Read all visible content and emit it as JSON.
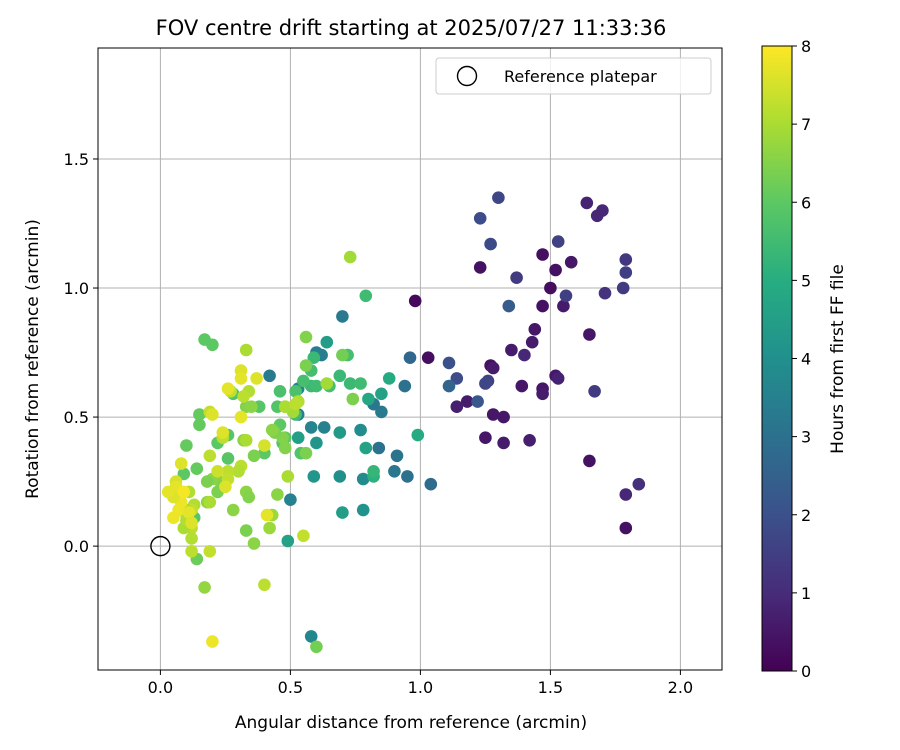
{
  "chart_data": {
    "type": "scatter",
    "title": "FOV centre drift starting at 2025/07/27 11:33:36",
    "xlabel": "Angular distance from reference (arcmin)",
    "ylabel": "Rotation from reference (arcmin)",
    "xlim": [
      -0.24,
      2.16
    ],
    "ylim": [
      -0.48,
      1.93
    ],
    "xticks": [
      0.0,
      0.5,
      1.0,
      1.5,
      2.0
    ],
    "xtick_labels": [
      "0.0",
      "0.5",
      "1.0",
      "1.5",
      "2.0"
    ],
    "yticks": [
      0.0,
      0.5,
      1.0,
      1.5
    ],
    "ytick_labels": [
      "0.0",
      "0.5",
      "1.0",
      "1.5"
    ],
    "grid": true,
    "legend": {
      "placement": "top-right",
      "entries": [
        "Reference platepar"
      ]
    },
    "reference_point": {
      "label": "Reference platepar",
      "x": 0.0,
      "y": 0.0
    },
    "colorbar": {
      "label": "Hours from first FF file",
      "range": [
        0,
        8
      ],
      "ticks": [
        0,
        1,
        2,
        3,
        4,
        5,
        6,
        7,
        8
      ],
      "tick_labels": [
        "0",
        "1",
        "2",
        "3",
        "4",
        "5",
        "6",
        "7",
        "8"
      ],
      "colormap": "viridis"
    },
    "points": [
      [
        0.98,
        0.95,
        0.2
      ],
      [
        1.03,
        0.73,
        0.3
      ],
      [
        1.23,
        1.08,
        0.4
      ],
      [
        1.27,
        0.7,
        0.4
      ],
      [
        1.25,
        0.42,
        0.5
      ],
      [
        1.28,
        0.51,
        0.5
      ],
      [
        1.32,
        0.5,
        0.5
      ],
      [
        1.32,
        0.4,
        0.6
      ],
      [
        1.18,
        0.56,
        0.6
      ],
      [
        1.14,
        0.54,
        0.7
      ],
      [
        1.28,
        0.69,
        0.6
      ],
      [
        1.65,
        0.33,
        0.4
      ],
      [
        1.65,
        0.82,
        0.5
      ],
      [
        1.64,
        1.33,
        0.8
      ],
      [
        1.68,
        1.28,
        0.9
      ],
      [
        1.7,
        1.3,
        0.9
      ],
      [
        1.58,
        1.1,
        0.5
      ],
      [
        1.55,
        0.93,
        0.6
      ],
      [
        1.52,
        1.07,
        0.4
      ],
      [
        1.5,
        1.0,
        0.3
      ],
      [
        1.47,
        1.13,
        0.3
      ],
      [
        1.47,
        0.93,
        0.4
      ],
      [
        1.47,
        0.61,
        0.5
      ],
      [
        1.47,
        0.59,
        0.6
      ],
      [
        1.44,
        0.84,
        0.5
      ],
      [
        1.43,
        0.79,
        0.6
      ],
      [
        1.42,
        0.41,
        0.7
      ],
      [
        1.4,
        0.74,
        0.9
      ],
      [
        1.39,
        0.62,
        0.5
      ],
      [
        1.35,
        0.76,
        0.6
      ],
      [
        1.52,
        0.66,
        0.5
      ],
      [
        1.53,
        0.65,
        0.8
      ],
      [
        1.79,
        0.2,
        0.9
      ],
      [
        1.79,
        0.07,
        0.4
      ],
      [
        1.84,
        0.24,
        1.1
      ],
      [
        1.79,
        1.11,
        1.3
      ],
      [
        1.79,
        1.06,
        1.5
      ],
      [
        1.78,
        1.0,
        1.4
      ],
      [
        1.71,
        0.98,
        1.2
      ],
      [
        1.67,
        0.6,
        1.4
      ],
      [
        1.56,
        0.97,
        1.5
      ],
      [
        1.53,
        1.18,
        1.6
      ],
      [
        1.37,
        1.04,
        1.4
      ],
      [
        1.3,
        1.35,
        1.7
      ],
      [
        1.27,
        1.17,
        1.8
      ],
      [
        1.23,
        1.27,
        1.9
      ],
      [
        1.26,
        0.64,
        1.6
      ],
      [
        1.25,
        0.63,
        1.7
      ],
      [
        1.14,
        0.65,
        1.9
      ],
      [
        1.11,
        0.71,
        2.0
      ],
      [
        1.34,
        0.93,
        2.3
      ],
      [
        1.22,
        0.56,
        2.2
      ],
      [
        1.11,
        0.62,
        2.6
      ],
      [
        1.04,
        0.24,
        2.8
      ],
      [
        0.96,
        0.73,
        2.7
      ],
      [
        0.94,
        0.62,
        3.0
      ],
      [
        0.95,
        0.27,
        3.0
      ],
      [
        0.91,
        0.35,
        3.1
      ],
      [
        0.9,
        0.29,
        3.2
      ],
      [
        0.85,
        0.52,
        3.3
      ],
      [
        0.84,
        0.38,
        3.0
      ],
      [
        0.82,
        0.55,
        3.2
      ],
      [
        0.7,
        0.89,
        3.3
      ],
      [
        0.62,
        0.74,
        3.4
      ],
      [
        0.6,
        0.75,
        3.4
      ],
      [
        0.63,
        0.46,
        3.5
      ],
      [
        0.58,
        0.46,
        3.6
      ],
      [
        0.53,
        0.51,
        3.4
      ],
      [
        0.53,
        0.61,
        3.5
      ],
      [
        0.5,
        0.18,
        3.5
      ],
      [
        0.42,
        0.66,
        3.3
      ],
      [
        0.58,
        -0.35,
        3.7
      ],
      [
        0.78,
        0.26,
        3.8
      ],
      [
        0.77,
        0.45,
        3.9
      ],
      [
        0.78,
        0.14,
        4.1
      ],
      [
        0.69,
        0.27,
        4.0
      ],
      [
        0.69,
        0.44,
        4.3
      ],
      [
        0.7,
        0.13,
        4.4
      ],
      [
        0.59,
        0.27,
        4.2
      ],
      [
        0.6,
        0.4,
        4.2
      ],
      [
        0.64,
        0.79,
        4.4
      ],
      [
        0.53,
        0.42,
        4.5
      ],
      [
        0.49,
        0.02,
        4.6
      ],
      [
        0.85,
        0.59,
        4.6
      ],
      [
        0.8,
        0.57,
        4.8
      ],
      [
        0.79,
        0.38,
        4.6
      ],
      [
        0.88,
        0.65,
        4.9
      ],
      [
        0.99,
        0.43,
        4.9
      ],
      [
        0.82,
        0.27,
        5.1
      ],
      [
        0.82,
        0.29,
        5.3
      ],
      [
        0.73,
        0.63,
        5.4
      ],
      [
        0.79,
        0.97,
        5.5
      ],
      [
        0.72,
        0.74,
        5.6
      ],
      [
        0.77,
        0.63,
        5.5
      ],
      [
        0.65,
        0.62,
        5.6
      ],
      [
        0.69,
        0.66,
        5.4
      ],
      [
        0.58,
        0.62,
        5.4
      ],
      [
        0.6,
        0.62,
        5.5
      ],
      [
        0.58,
        0.68,
        5.6
      ],
      [
        0.59,
        0.73,
        5.4
      ],
      [
        0.52,
        0.51,
        5.5
      ],
      [
        0.52,
        0.6,
        5.7
      ],
      [
        0.55,
        0.64,
        5.6
      ],
      [
        0.54,
        0.36,
        5.8
      ],
      [
        0.46,
        0.6,
        5.7
      ],
      [
        0.45,
        0.54,
        5.8
      ],
      [
        0.44,
        0.45,
        5.8
      ],
      [
        0.47,
        0.4,
        5.9
      ],
      [
        0.48,
        0.42,
        6.0
      ],
      [
        0.46,
        0.47,
        6.0
      ],
      [
        0.4,
        0.36,
        6.0
      ],
      [
        0.38,
        0.54,
        5.9
      ],
      [
        0.28,
        0.59,
        5.8
      ],
      [
        0.26,
        0.43,
        5.9
      ],
      [
        0.26,
        0.34,
        5.9
      ],
      [
        0.22,
        0.4,
        6.0
      ],
      [
        0.17,
        0.8,
        6.0
      ],
      [
        0.2,
        0.78,
        6.0
      ],
      [
        0.15,
        0.51,
        6.1
      ],
      [
        0.15,
        0.47,
        6.1
      ],
      [
        0.14,
        0.3,
        6.1
      ],
      [
        0.13,
        0.11,
        5.9
      ],
      [
        0.14,
        -0.05,
        6.2
      ],
      [
        0.1,
        0.39,
        6.1
      ],
      [
        0.09,
        0.28,
        6.0
      ],
      [
        0.6,
        -0.39,
        6.3
      ],
      [
        0.7,
        0.74,
        6.3
      ],
      [
        0.74,
        0.57,
        6.4
      ],
      [
        0.56,
        0.81,
        6.5
      ],
      [
        0.56,
        0.7,
        6.4
      ],
      [
        0.56,
        0.36,
        6.4
      ],
      [
        0.47,
        0.42,
        6.5
      ],
      [
        0.48,
        0.54,
        6.6
      ],
      [
        0.48,
        0.38,
        6.5
      ],
      [
        0.45,
        0.2,
        6.6
      ],
      [
        0.44,
        0.44,
        6.4
      ],
      [
        0.33,
        0.21,
        6.6
      ],
      [
        0.33,
        0.06,
        6.4
      ],
      [
        0.34,
        0.19,
        6.5
      ],
      [
        0.36,
        0.01,
        6.6
      ],
      [
        0.36,
        0.35,
        6.4
      ],
      [
        0.33,
        0.54,
        6.5
      ],
      [
        0.32,
        0.41,
        6.6
      ],
      [
        0.35,
        0.54,
        6.6
      ],
      [
        0.3,
        0.29,
        6.5
      ],
      [
        0.28,
        0.14,
        6.6
      ],
      [
        0.23,
        0.25,
        6.5
      ],
      [
        0.22,
        0.21,
        6.4
      ],
      [
        0.2,
        0.26,
        6.6
      ],
      [
        0.18,
        0.25,
        6.4
      ],
      [
        0.18,
        0.17,
        6.6
      ],
      [
        0.17,
        -0.16,
        6.7
      ],
      [
        0.42,
        0.07,
        6.8
      ],
      [
        0.43,
        0.12,
        6.8
      ],
      [
        0.43,
        0.45,
        6.6
      ],
      [
        0.73,
        1.12,
        6.9
      ],
      [
        0.64,
        0.63,
        6.9
      ],
      [
        0.51,
        0.52,
        6.9
      ],
      [
        0.49,
        0.27,
        7.0
      ],
      [
        0.48,
        0.54,
        7.0
      ],
      [
        0.53,
        0.56,
        7.0
      ],
      [
        0.53,
        0.56,
        7.1
      ],
      [
        0.52,
        0.55,
        7.2
      ],
      [
        0.34,
        0.6,
        7.1
      ],
      [
        0.32,
        0.58,
        7.2
      ],
      [
        0.33,
        0.76,
        7.0
      ],
      [
        0.33,
        0.41,
        7.0
      ],
      [
        0.31,
        0.31,
        7.2
      ],
      [
        0.3,
        0.29,
        7.1
      ],
      [
        0.27,
        0.6,
        7.3
      ],
      [
        0.26,
        0.29,
        7.2
      ],
      [
        0.26,
        0.26,
        7.3
      ],
      [
        0.24,
        0.42,
        7.2
      ],
      [
        0.22,
        0.29,
        7.4
      ],
      [
        0.19,
        0.35,
        7.2
      ],
      [
        0.19,
        0.52,
        7.3
      ],
      [
        0.19,
        -0.02,
        7.3
      ],
      [
        0.19,
        0.17,
        7.0
      ],
      [
        0.13,
        0.16,
        7.1
      ],
      [
        0.12,
        0.14,
        7.3
      ],
      [
        0.12,
        0.07,
        7.2
      ],
      [
        0.12,
        0.03,
        7.1
      ],
      [
        0.12,
        -0.02,
        7.2
      ],
      [
        0.11,
        0.21,
        7.1
      ],
      [
        0.1,
        0.12,
        7.1
      ],
      [
        0.09,
        0.07,
        7.0
      ],
      [
        0.1,
        0.1,
        7.1
      ],
      [
        0.1,
        0.14,
        7.0
      ],
      [
        0.4,
        -0.15,
        7.2
      ],
      [
        0.55,
        0.04,
        7.3
      ],
      [
        0.4,
        0.39,
        7.5
      ],
      [
        0.37,
        0.65,
        7.6
      ],
      [
        0.31,
        0.68,
        7.6
      ],
      [
        0.31,
        0.5,
        7.7
      ],
      [
        0.26,
        0.61,
        7.7
      ],
      [
        0.25,
        0.23,
        7.6
      ],
      [
        0.2,
        -0.37,
        7.8
      ],
      [
        0.2,
        0.51,
        7.6
      ],
      [
        0.24,
        0.44,
        7.6
      ],
      [
        0.06,
        0.25,
        7.5
      ],
      [
        0.08,
        0.32,
        7.6
      ],
      [
        0.08,
        0.17,
        7.8
      ],
      [
        0.06,
        0.23,
        7.7
      ],
      [
        0.05,
        0.19,
        7.6
      ],
      [
        0.03,
        0.21,
        7.7
      ],
      [
        0.05,
        0.11,
        7.8
      ],
      [
        0.07,
        0.14,
        7.8
      ],
      [
        0.09,
        0.21,
        7.9
      ],
      [
        0.11,
        0.13,
        7.7
      ],
      [
        0.12,
        0.09,
        7.6
      ],
      [
        0.41,
        0.12,
        7.7
      ],
      [
        0.31,
        0.65,
        7.7
      ]
    ]
  }
}
